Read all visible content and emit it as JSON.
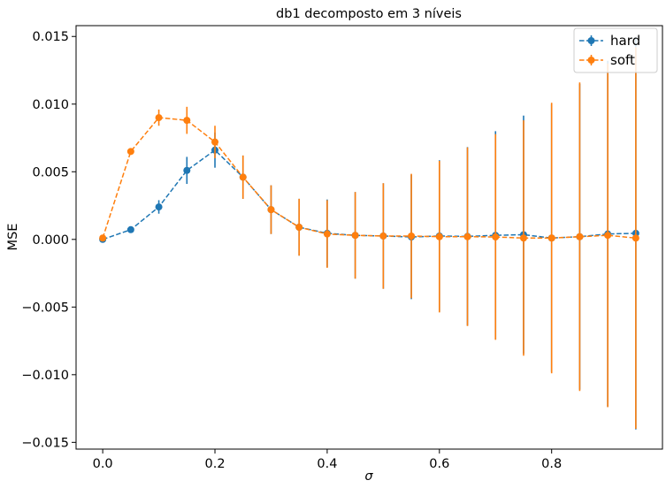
{
  "chart_data": {
    "type": "line",
    "title": "db1 decomposto em 3 níveis",
    "xlabel": "σ",
    "ylabel": "MSE",
    "xlim": [
      -0.0475,
      0.9975
    ],
    "ylim": [
      -0.0155,
      0.0158
    ],
    "xticks": [
      0.0,
      0.2,
      0.4,
      0.6,
      0.8
    ],
    "xtick_labels": [
      "0.0",
      "0.2",
      "0.4",
      "0.6",
      "0.8"
    ],
    "yticks": [
      -0.015,
      -0.01,
      -0.005,
      0.0,
      0.005,
      0.01,
      0.015
    ],
    "ytick_labels": [
      "−0.015",
      "−0.010",
      "−0.005",
      "0.000",
      "0.005",
      "0.010",
      "0.015"
    ],
    "grid": false,
    "legend_position": "top-right",
    "x": [
      0.0,
      0.05,
      0.1,
      0.15,
      0.2,
      0.25,
      0.3,
      0.35,
      0.4,
      0.45,
      0.5,
      0.55,
      0.6,
      0.65,
      0.7,
      0.75,
      0.8,
      0.85,
      0.9,
      0.95
    ],
    "series": [
      {
        "name": "hard",
        "color": "#1f77b4",
        "values": [
          0.0,
          0.00072,
          0.0024,
          0.0051,
          0.0066,
          0.0046,
          0.0022,
          0.0009,
          0.00045,
          0.0003,
          0.00025,
          0.00018,
          0.00025,
          0.00022,
          0.0003,
          0.00035,
          0.0001,
          0.0002,
          0.0004,
          0.00045
        ],
        "errors": [
          0.0,
          0.0001,
          0.0005,
          0.001,
          0.0013,
          0.0016,
          0.0018,
          0.0021,
          0.0025,
          0.0032,
          0.0039,
          0.0046,
          0.0056,
          0.0066,
          0.0077,
          0.0088,
          0.0099,
          0.0113,
          0.0128,
          0.0145
        ]
      },
      {
        "name": "soft",
        "color": "#ff7f0e",
        "values": [
          0.0001,
          0.0065,
          0.009,
          0.0088,
          0.0072,
          0.0046,
          0.0022,
          0.0009,
          0.0004,
          0.0003,
          0.00025,
          0.00025,
          0.0002,
          0.0002,
          0.00018,
          0.0001,
          0.0001,
          0.0002,
          0.0003,
          0.0001
        ],
        "errors": [
          0.0001,
          0.0002,
          0.0006,
          0.001,
          0.0012,
          0.0016,
          0.0018,
          0.0021,
          0.0025,
          0.0032,
          0.0039,
          0.0046,
          0.0056,
          0.0066,
          0.0076,
          0.0087,
          0.01,
          0.0114,
          0.0127,
          0.0141
        ]
      }
    ]
  }
}
